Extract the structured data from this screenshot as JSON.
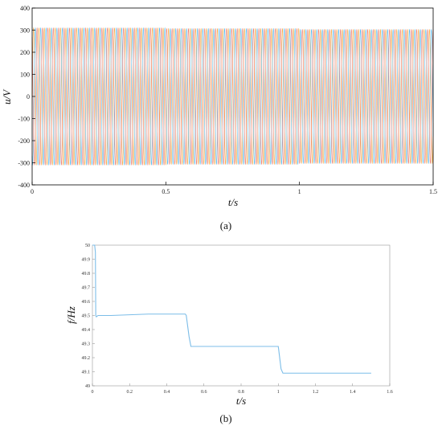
{
  "chart_data": [
    {
      "type": "line",
      "panel_label": "(a)",
      "xlabel": "t/s",
      "ylabel": "u/V",
      "xlim": [
        0,
        1.5
      ],
      "ylim": [
        -400,
        400
      ],
      "xticks": [
        "0",
        "0.5",
        "1",
        "1.5"
      ],
      "yticks": [
        "400",
        "300",
        "200",
        "100",
        "0",
        "-100",
        "-200",
        "-300",
        "-400"
      ],
      "grid": false,
      "legend": "none",
      "series": [
        {
          "phase_offset_deg": 0,
          "color": "#f2a33a"
        },
        {
          "phase_offset_deg": 120,
          "color": "#4fb3e8"
        },
        {
          "phase_offset_deg": 240,
          "color": "#e8756a"
        }
      ],
      "amplitude_segments": [
        {
          "t_start": 0,
          "t_end": 0.5,
          "amplitude": 310
        },
        {
          "t_start": 0.5,
          "t_end": 1.0,
          "amplitude": 307
        },
        {
          "t_start": 1.0,
          "t_end": 1.5,
          "amplitude": 303
        }
      ],
      "frequency_segments": [
        {
          "t_start": 0,
          "t_end": 0.5,
          "frequency": 49.5
        },
        {
          "t_start": 0.5,
          "t_end": 1.0,
          "frequency": 49.28
        },
        {
          "t_start": 1.0,
          "t_end": 1.5,
          "frequency": 49.09
        }
      ]
    },
    {
      "type": "line",
      "panel_label": "(b)",
      "xlabel": "t/s",
      "ylabel": "f/Hz",
      "xlim": [
        0,
        1.6
      ],
      "ylim": [
        49,
        50
      ],
      "xticks": [
        "0",
        "0.2",
        "0.4",
        "0.6",
        "0.8",
        "1",
        "1.2",
        "1.4",
        "1.6"
      ],
      "yticks": [
        "50",
        "49.9",
        "49.8",
        "49.7",
        "49.6",
        "49.5",
        "49.4",
        "49.3",
        "49.2",
        "49.1",
        "49"
      ],
      "grid": false,
      "legend": "none",
      "color": "#7cbde8",
      "x": [
        0,
        0.005,
        0.012,
        0.016,
        0.018,
        0.021,
        0.03,
        0.1,
        0.2,
        0.3,
        0.4,
        0.5,
        0.505,
        0.52,
        0.53,
        0.6,
        0.8,
        1.0,
        1.003,
        1.015,
        1.025,
        1.2,
        1.5
      ],
      "y": [
        50,
        50,
        50,
        49.95,
        49.5,
        49.49,
        49.5,
        49.5,
        49.505,
        49.51,
        49.51,
        49.51,
        49.5,
        49.35,
        49.28,
        49.28,
        49.28,
        49.28,
        49.25,
        49.12,
        49.09,
        49.09,
        49.09
      ]
    }
  ]
}
